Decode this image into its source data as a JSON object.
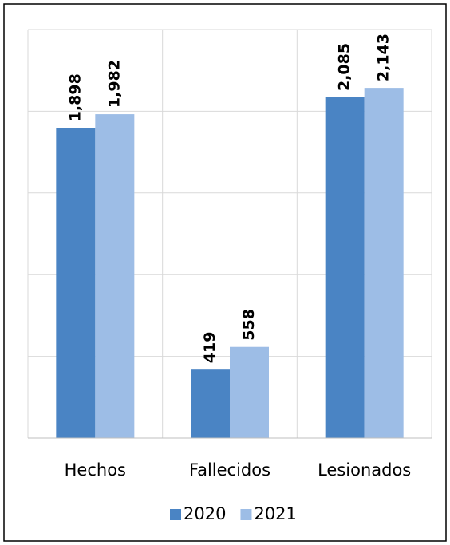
{
  "chart_data": {
    "type": "bar",
    "categories": [
      "Hechos",
      "Fallecidos",
      "Lesionados"
    ],
    "series": [
      {
        "name": "2020",
        "color": "#4a84c4",
        "values": [
          1898,
          419,
          2085
        ],
        "value_labels": [
          "1,898",
          "419",
          "2,085"
        ]
      },
      {
        "name": "2021",
        "color": "#9dbde6",
        "values": [
          1982,
          558,
          2143
        ],
        "value_labels": [
          "1,982",
          "558",
          "2,143"
        ]
      }
    ],
    "ylim": [
      0,
      2500
    ],
    "yticks": [
      0,
      500,
      1000,
      1500,
      2000,
      2500
    ],
    "grid": true,
    "legend": "bottom"
  }
}
